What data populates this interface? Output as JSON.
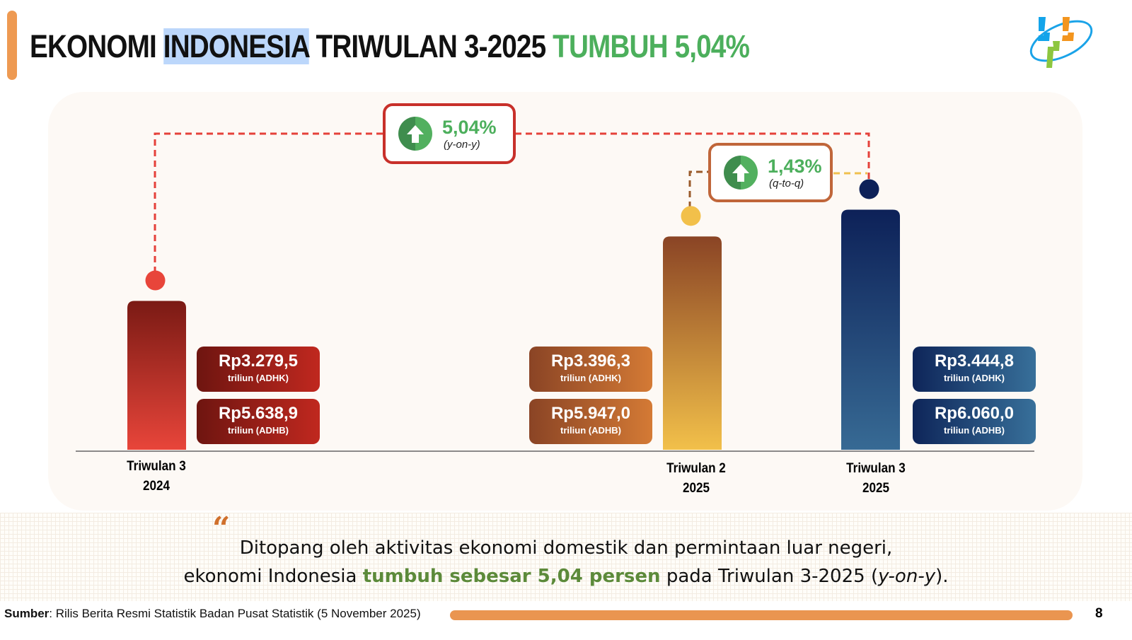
{
  "header": {
    "title_part1": "EKONOMI",
    "title_highlight": "INDONESIA",
    "title_part2": "TRIWULAN 3-2025",
    "title_green": "TUMBUH 5,04%",
    "logo": "bps-logo"
  },
  "chart_data": {
    "type": "bar",
    "categories": [
      "Triwulan 3 2024",
      "Triwulan 2 2025",
      "Triwulan 3 2025"
    ],
    "category_labels": [
      {
        "line1": "Triwulan 3",
        "line2": "2024"
      },
      {
        "line1": "Triwulan 2",
        "line2": "2025"
      },
      {
        "line1": "Triwulan 3",
        "line2": "2025"
      }
    ],
    "series": [
      {
        "name": "triliun (ADHK)",
        "values": [
          3279.5,
          3396.3,
          3444.8
        ],
        "labels": [
          "Rp3.279,5",
          "Rp3.396,3",
          "Rp3.444,8"
        ]
      },
      {
        "name": "triliun (ADHB)",
        "values": [
          5638.9,
          5947.0,
          6060.0
        ],
        "labels": [
          "Rp5.638,9",
          "Rp5.947,0",
          "Rp6.060,0"
        ]
      }
    ],
    "unit_labels": [
      "triliun (ADHK)",
      "triliun (ADHB)"
    ],
    "ylim": [
      3010,
      3480
    ],
    "grid": false,
    "colors": {
      "bars": [
        [
          "#7a1a14",
          "#e8453a"
        ],
        [
          "#8a4425",
          "#f2c04a"
        ],
        [
          "#0d2158",
          "#376a94"
        ]
      ],
      "labels": [
        [
          "#6e1510",
          "#c0281f"
        ],
        [
          "#8a4425",
          "#d47a35"
        ],
        [
          "#0e2559",
          "#38709a"
        ]
      ]
    },
    "annotations": [
      {
        "value": "5,04%",
        "label": "(y-on-y)",
        "from": "Triwulan 3 2024",
        "to": "Triwulan 3 2025",
        "icon": "arrow-up-icon"
      },
      {
        "value": "1,43%",
        "label": "(q-to-q)",
        "from": "Triwulan 2 2025",
        "to": "Triwulan 3 2025",
        "icon": "arrow-up-icon"
      }
    ]
  },
  "quote": {
    "line1": "Ditopang oleh aktivitas ekonomi domestik dan permintaan luar negeri,",
    "line2_pre": "ekonomi Indonesia ",
    "line2_bold": "tumbuh sebesar 5,04 persen",
    "line2_post": " pada Triwulan 3-2025 (",
    "line2_italic": "y-on-y",
    "line2_end": ")."
  },
  "footer": {
    "source_label": "Sumber",
    "source_text": ": Rilis Berita Resmi Statistik Badan Pusat Statistik (5 November 2025)",
    "page_number": "8"
  }
}
